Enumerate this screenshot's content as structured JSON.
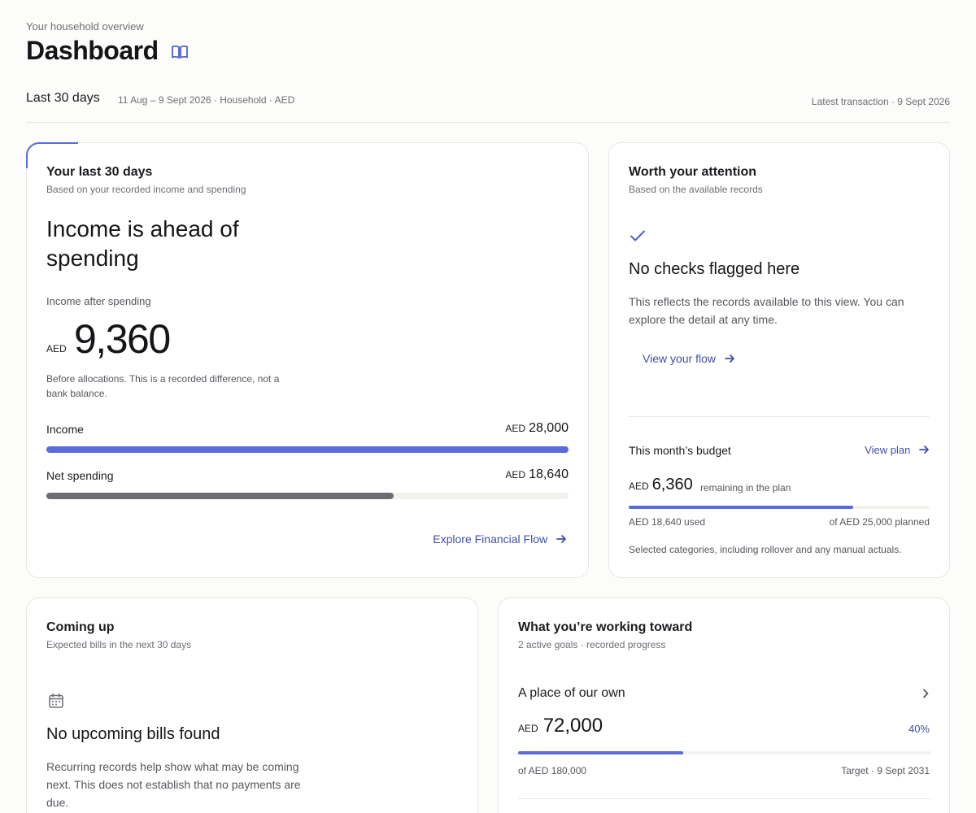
{
  "header": {
    "eyebrow": "Your household overview",
    "title": "Dashboard",
    "guide_icon": "book-open-icon"
  },
  "period": {
    "label": "Last 30 days",
    "meta": "11 Aug – 9 Sept 2026 · Household · AED",
    "latest": "Latest transaction · 9 Sept 2026"
  },
  "colors": {
    "accent": "#5b6bd9",
    "link": "#3f4fa8",
    "spending_bar": "#6b6d72",
    "track": "#f2f2ee"
  },
  "summary": {
    "title": "Your last 30 days",
    "subtitle": "Based on your recorded income and spending",
    "headline": "Income is ahead of spending",
    "net_label": "Income after spending",
    "currency": "AED",
    "net_value": "9,360",
    "note": "Before allocations. This is a recorded difference, not a bank balance.",
    "income_label": "Income",
    "income_value": "28,000",
    "income_fraction": 1.0,
    "spending_label": "Net spending",
    "spending_value": "18,640",
    "spending_fraction": 0.6657,
    "explore_label": "Explore Financial Flow",
    "arrow_icon": "arrow-right-icon"
  },
  "attention": {
    "title": "Worth your attention",
    "subtitle": "Based on the available records",
    "check_icon": "check-icon",
    "heading": "No checks flagged here",
    "body": "This reflects the records available to this view. You can explore the detail at any time.",
    "flow_link": "View your flow"
  },
  "budget": {
    "title": "This month’s budget",
    "plan_link": "View plan",
    "currency": "AED",
    "remaining_value": "6,360",
    "remaining_label": "remaining in the plan",
    "used_fraction": 0.7456,
    "used": "AED 18,640 used",
    "planned": "of AED 25,000 planned",
    "note": "Selected categories, including rollover and any manual actuals."
  },
  "upcoming": {
    "title": "Coming up",
    "subtitle": "Expected bills in the next 30 days",
    "calendar_icon": "calendar-icon",
    "heading": "No upcoming bills found",
    "body": "Recurring records help show what may be coming next. This does not establish that no payments are due."
  },
  "goals": {
    "title": "What you’re working toward",
    "subtitle": "2 active goals · recorded progress",
    "items": [
      {
        "name": "A place of our own",
        "currency": "AED",
        "value": "72,000",
        "percent": "40%",
        "progress": 0.4,
        "of": "of AED 180,000",
        "target": "Target · 9 Sept 2031"
      }
    ]
  }
}
